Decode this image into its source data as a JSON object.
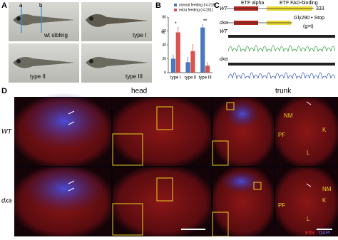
{
  "panels": {
    "A": {
      "label": "A",
      "markers": [
        "a",
        "b"
      ],
      "photos": [
        "wt sibling",
        "type I",
        "type II",
        "type III"
      ]
    },
    "B": {
      "label": "B"
    },
    "C": {
      "label": "C",
      "domains": [
        "ETF alpha",
        "ETF FAD-binding"
      ],
      "length": "333",
      "rows": [
        "WT",
        "dxa"
      ],
      "mutation": "Gly290 • Stop",
      "change": "(g>t)",
      "traces": [
        "WT",
        "dxa"
      ]
    },
    "D": {
      "label": "D",
      "headers": [
        "head",
        "trunk"
      ],
      "rows": [
        "WT",
        "dxa"
      ],
      "tissues": [
        "NM",
        "PF",
        "K",
        "L"
      ],
      "stains": [
        "Etfa",
        "DAPI"
      ]
    }
  },
  "chart_data": {
    "type": "bar",
    "y_label": "%",
    "categories": [
      "type I",
      "type II",
      "type III"
    ],
    "series": [
      {
        "name": "normal feeding (n=218)",
        "color": "#4a78c0",
        "values": [
          20,
          15,
          65
        ],
        "errors": [
          6,
          8,
          5
        ]
      },
      {
        "name": "extra feeding (n=151)",
        "color": "#d9534f",
        "values": [
          58,
          31,
          10
        ],
        "errors": [
          8,
          10,
          5
        ]
      }
    ],
    "annotations": [
      {
        "category": 0,
        "text": "*"
      },
      {
        "category": 2,
        "text": "**"
      }
    ],
    "ylim": [
      0,
      80
    ],
    "yticks": [
      0,
      20,
      40,
      60,
      80
    ]
  }
}
